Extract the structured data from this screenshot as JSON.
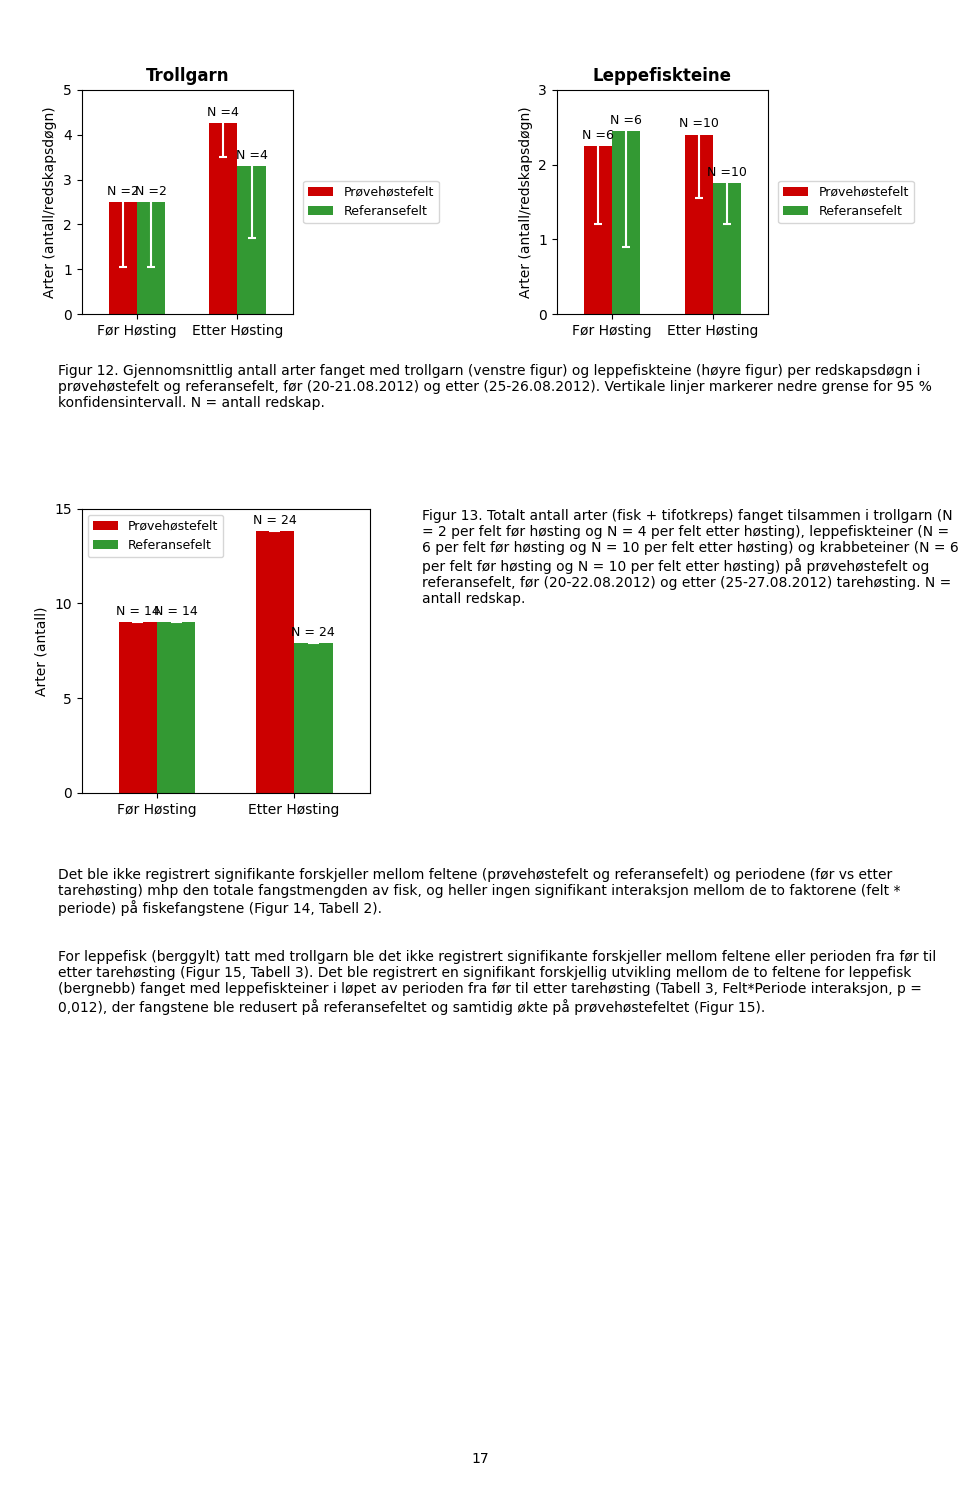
{
  "chart_data": [
    {
      "type": "bar",
      "title": "Trollgarn",
      "ylabel": "Arter (antall/redskapsdøgn)",
      "categories": [
        "Før Høsting",
        "Etter Høsting"
      ],
      "series": [
        {
          "name": "Prøvehøstefelt",
          "color": "#cc0000",
          "values": [
            2.5,
            4.25
          ],
          "err_low": [
            1.05,
            3.5
          ],
          "n_labels": [
            "N =2",
            "N =4"
          ]
        },
        {
          "name": "Referansefelt",
          "color": "#339933",
          "values": [
            2.5,
            3.3
          ],
          "err_low": [
            1.05,
            1.7
          ],
          "n_labels": [
            "N =2",
            "N =4"
          ]
        }
      ],
      "ylim": [
        0,
        5
      ],
      "yticks": [
        0,
        1,
        2,
        3,
        4,
        5
      ],
      "legend": "right"
    },
    {
      "type": "bar",
      "title": "Leppefiskteine",
      "ylabel": "Arter (antall/redskapsdøgn)",
      "categories": [
        "Før Høsting",
        "Etter Høsting"
      ],
      "series": [
        {
          "name": "Prøvehøstefelt",
          "color": "#cc0000",
          "values": [
            2.25,
            2.4
          ],
          "err_low": [
            1.2,
            1.55
          ],
          "n_labels": [
            "N =6",
            "N =10"
          ]
        },
        {
          "name": "Referansefelt",
          "color": "#339933",
          "values": [
            2.45,
            1.75
          ],
          "err_low": [
            0.9,
            1.2
          ],
          "n_labels": [
            "N =6",
            "N =10"
          ]
        }
      ],
      "ylim": [
        0,
        3
      ],
      "yticks": [
        0,
        1,
        2,
        3
      ],
      "legend": "right"
    },
    {
      "type": "bar",
      "ylabel": "Arter (antall)",
      "categories": [
        "Før Høsting",
        "Etter Høsting"
      ],
      "series": [
        {
          "name": "Prøvehøstefelt",
          "color": "#cc0000",
          "values": [
            9.0,
            13.8
          ],
          "err_low": [
            9.0,
            13.8
          ],
          "n_labels": [
            "N = 14",
            "N = 24"
          ]
        },
        {
          "name": "Referansefelt",
          "color": "#339933",
          "values": [
            9.0,
            7.9
          ],
          "err_low": [
            9.0,
            7.9
          ],
          "n_labels": [
            "N = 14",
            "N = 24"
          ]
        }
      ],
      "ylim": [
        0,
        15
      ],
      "yticks": [
        0,
        5,
        10,
        15
      ],
      "legend": "upper left"
    }
  ],
  "captions": [
    "Figur 12. Gjennomsnittlig antall arter fanget med trollgarn (venstre figur) og leppefiskteine (høyre figur) per redskapsdøgn i prøvehøstefelt og referansefelt, før (20-21.08.2012) og etter (25-26.08.2012). Vertikale linjer markerer nedre grense for 95 % konfidensintervall. N = antall redskap.",
    "Figur 13. Totalt antall arter (fisk + tifotkreps) fanget tilsammen i trollgarn (N = 2 per felt før høsting og N = 4 per felt etter høsting), leppefiskteiner (N = 6 per felt før høsting og N = 10 per felt etter høsting) og krabbeteiner (N = 6 per felt før høsting og N = 10 per felt etter høsting) på prøvehøstefelt og referansefelt, før (20-22.08.2012) og etter (25-27.08.2012) tarehøsting. N = antall redskap."
  ],
  "body_text": [
    "Det ble ikke registrert signifikante forskjeller mellom feltene (prøvehøstefelt og referansefelt) og periodene (før vs etter tarehøsting) mhp den totale fangstmengden av fisk, og heller ingen signifikant interaksjon mellom de to faktorene (felt * periode) på fiskefangstene (Figur 14, Tabell 2).",
    "For leppefisk (berggylt) tatt med trollgarn ble det ikke registrert signifikante forskjeller mellom feltene eller perioden fra før til etter tarehøsting (Figur 15, Tabell 3). Det ble registrert en signifikant forskjellig utvikling mellom de to feltene for leppefisk (bergnebb) fanget med leppefiskteiner i løpet av perioden fra før til etter tarehøsting (Tabell 3, Felt*Periode interaksjon, p = 0,012), der fangstene ble redusert på referansefeltet og samtidig økte på prøvehøstefeltet (Figur 15)."
  ],
  "page_number": "17"
}
